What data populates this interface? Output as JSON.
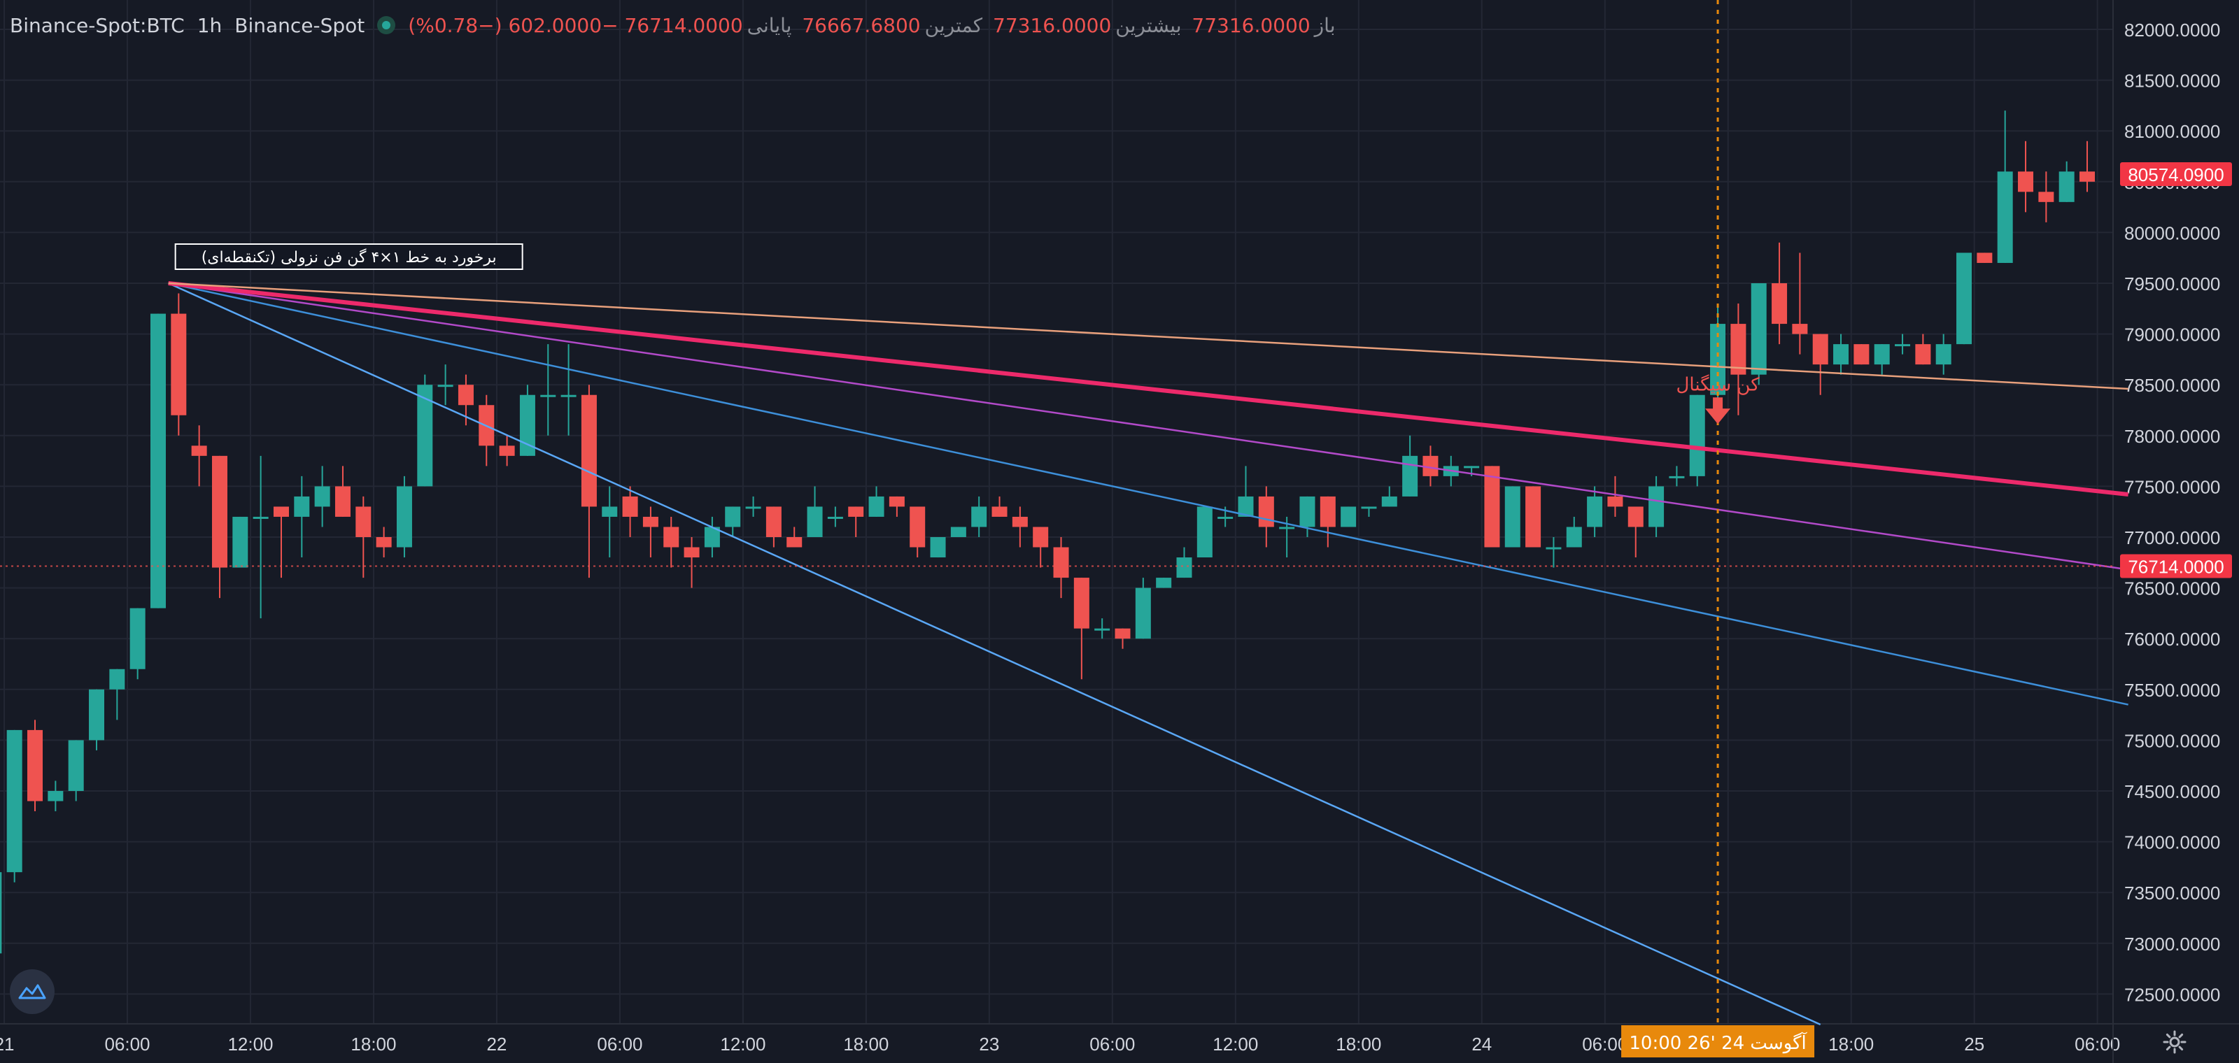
{
  "legend": {
    "symbol": "Binance-Spot:BTC",
    "interval": "1h",
    "exchange": "Binance-Spot",
    "open_label": "باز",
    "open": "77316.0000",
    "high_label": "بیشترین",
    "high": "77316.0000",
    "low_label": "کمترین",
    "low": "76667.6800",
    "close_label": "پایانی",
    "close": "76714.0000",
    "change": "−602.0000 (−0.78%)"
  },
  "colors": {
    "background": "#161a25",
    "grid": "#232734",
    "up": "#26a69a",
    "down": "#ef5350",
    "price_tag": "#f23645",
    "time_tag": "#e8890c",
    "fan_steep": "#5aa7f5",
    "fan_mid": "#3d8fd9",
    "fan_magenta": "#b24ac9",
    "fan_main": "#ed2a6b",
    "fan_flat": "#e8a07c"
  },
  "icons": {
    "logo": "tradingview-logo-icon",
    "settings": "gear-icon",
    "status": "live-status-dot-icon",
    "signal": "arrow-down-icon"
  },
  "chart_data": {
    "type": "candlestick",
    "interval": "1h",
    "ylim": [
      72250,
      82250
    ],
    "y_ticks": [
      "72500.0000",
      "73000.0000",
      "73500.0000",
      "74000.0000",
      "74500.0000",
      "75000.0000",
      "75500.0000",
      "76000.0000",
      "76500.0000",
      "77000.0000",
      "77500.0000",
      "78000.0000",
      "78500.0000",
      "79000.0000",
      "79500.0000",
      "80000.0000",
      "80500.0000",
      "81000.0000",
      "81500.0000",
      "82000.0000"
    ],
    "x_ticks": [
      "21",
      "06:00",
      "12:00",
      "18:00",
      "22",
      "06:00",
      "12:00",
      "18:00",
      "23",
      "06:00",
      "12:00",
      "18:00",
      "24",
      "06:00",
      "12:00",
      "18:00",
      "25",
      "06:00"
    ],
    "x_tick_positions_hours": [
      0,
      6,
      12,
      18,
      24,
      30,
      36,
      42,
      48,
      54,
      60,
      66,
      72,
      78,
      84,
      90,
      96,
      102
    ],
    "candle_hours_start": -0.5,
    "candles": [
      [
        72900,
        73700,
        72900,
        73700
      ],
      [
        73700,
        75100,
        73600,
        75100
      ],
      [
        75100,
        74400,
        74300,
        75200
      ],
      [
        74400,
        74500,
        74300,
        74600
      ],
      [
        74500,
        75000,
        74400,
        75000
      ],
      [
        75000,
        75500,
        74900,
        75500
      ],
      [
        75500,
        75700,
        75200,
        75700
      ],
      [
        75700,
        76300,
        75600,
        76300
      ],
      [
        76300,
        79200,
        76300,
        79200
      ],
      [
        79200,
        78200,
        78000,
        79400
      ],
      [
        77900,
        77800,
        77500,
        78100
      ],
      [
        77800,
        76700,
        76400,
        77800
      ],
      [
        76700,
        77200,
        76800,
        77200
      ],
      [
        77200,
        77200,
        76200,
        77800
      ],
      [
        77300,
        77200,
        76600,
        77300
      ],
      [
        77200,
        77400,
        76800,
        77600
      ],
      [
        77300,
        77500,
        77100,
        77700
      ],
      [
        77500,
        77200,
        77200,
        77700
      ],
      [
        77300,
        77000,
        76600,
        77400
      ],
      [
        77000,
        76900,
        76800,
        77100
      ],
      [
        76900,
        77500,
        76800,
        77600
      ],
      [
        77500,
        78500,
        77500,
        78600
      ],
      [
        78500,
        78500,
        78300,
        78700
      ],
      [
        78500,
        78300,
        78100,
        78600
      ],
      [
        78300,
        77900,
        77700,
        78400
      ],
      [
        77900,
        77800,
        77700,
        78000
      ],
      [
        77800,
        78400,
        77800,
        78500
      ],
      [
        78400,
        78400,
        78000,
        78900
      ],
      [
        78400,
        78400,
        78000,
        78900
      ],
      [
        78400,
        77300,
        76600,
        78500
      ],
      [
        77200,
        77300,
        76800,
        77500
      ],
      [
        77400,
        77200,
        77000,
        77500
      ],
      [
        77200,
        77100,
        76800,
        77300
      ],
      [
        77100,
        76900,
        76700,
        77200
      ],
      [
        76900,
        76800,
        76500,
        77000
      ],
      [
        76900,
        77100,
        76800,
        77200
      ],
      [
        77100,
        77300,
        77000,
        77300
      ],
      [
        77300,
        77300,
        77200,
        77400
      ],
      [
        77300,
        77000,
        76900,
        77300
      ],
      [
        77000,
        76900,
        76900,
        77100
      ],
      [
        77000,
        77300,
        77000,
        77500
      ],
      [
        77200,
        77200,
        77100,
        77300
      ],
      [
        77300,
        77200,
        77000,
        77300
      ],
      [
        77200,
        77400,
        77200,
        77500
      ],
      [
        77400,
        77300,
        77200,
        77400
      ],
      [
        77300,
        76900,
        76800,
        77300
      ],
      [
        76800,
        77000,
        76800,
        77000
      ],
      [
        77000,
        77100,
        77000,
        77100
      ],
      [
        77100,
        77300,
        77000,
        77400
      ],
      [
        77300,
        77200,
        77200,
        77400
      ],
      [
        77200,
        77100,
        76900,
        77300
      ],
      [
        77100,
        76900,
        76700,
        77100
      ],
      [
        76900,
        76600,
        76400,
        77000
      ],
      [
        76600,
        76100,
        75600,
        76600
      ],
      [
        76100,
        76100,
        76000,
        76200
      ],
      [
        76100,
        76000,
        75900,
        76100
      ],
      [
        76000,
        76500,
        76000,
        76600
      ],
      [
        76500,
        76600,
        76500,
        76600
      ],
      [
        76600,
        76800,
        76600,
        76900
      ],
      [
        76800,
        77300,
        76800,
        77300
      ],
      [
        77200,
        77200,
        77100,
        77300
      ],
      [
        77200,
        77400,
        77200,
        77700
      ],
      [
        77400,
        77100,
        76900,
        77500
      ],
      [
        77100,
        77100,
        76800,
        77200
      ],
      [
        77100,
        77400,
        77000,
        77400
      ],
      [
        77400,
        77100,
        76900,
        77400
      ],
      [
        77100,
        77300,
        77100,
        77300
      ],
      [
        77300,
        77300,
        77200,
        77300
      ],
      [
        77300,
        77400,
        77300,
        77500
      ],
      [
        77400,
        77800,
        77400,
        78000
      ],
      [
        77800,
        77600,
        77500,
        77900
      ],
      [
        77600,
        77700,
        77500,
        77800
      ],
      [
        77700,
        77700,
        77600,
        77700
      ],
      [
        77700,
        76900,
        76900,
        77700
      ],
      [
        76900,
        77500,
        76900,
        77500
      ],
      [
        77500,
        76900,
        76900,
        77500
      ],
      [
        76900,
        76900,
        76700,
        77000
      ],
      [
        76900,
        77100,
        76900,
        77200
      ],
      [
        77100,
        77400,
        77000,
        77500
      ],
      [
        77400,
        77300,
        77200,
        77600
      ],
      [
        77300,
        77100,
        76800,
        77300
      ],
      [
        77100,
        77500,
        77000,
        77600
      ],
      [
        77600,
        77600,
        77500,
        77700
      ],
      [
        77600,
        78400,
        77500,
        78400
      ],
      [
        78400,
        79100,
        78300,
        79300
      ],
      [
        79100,
        78600,
        78200,
        79300
      ],
      [
        78600,
        79500,
        78500,
        79500
      ],
      [
        79500,
        79100,
        78900,
        79900
      ],
      [
        79100,
        79000,
        78800,
        79800
      ],
      [
        79000,
        78700,
        78400,
        79000
      ],
      [
        78700,
        78900,
        78600,
        79000
      ],
      [
        78900,
        78700,
        78700,
        78900
      ],
      [
        78700,
        78900,
        78600,
        78900
      ],
      [
        78900,
        78900,
        78800,
        79000
      ],
      [
        78900,
        78700,
        78700,
        79000
      ],
      [
        78700,
        78900,
        78600,
        79000
      ],
      [
        78900,
        79800,
        78900,
        79800
      ],
      [
        79800,
        79700,
        79700,
        79800
      ],
      [
        79700,
        80600,
        79700,
        81200
      ],
      [
        80600,
        80400,
        80200,
        80900
      ],
      [
        80400,
        80300,
        80100,
        80600
      ],
      [
        80300,
        80600,
        80300,
        80700
      ],
      [
        80600,
        80500,
        80400,
        80900
      ]
    ],
    "last_price": "80574.0900",
    "last_price_value": 80574.09,
    "selected_close": "76714.0000",
    "selected_close_value": 76714,
    "cursor_hours": 83.5,
    "cursor_time": "10:00  26' آگوست 24",
    "fan_anchor": {
      "hours": 8,
      "price": 79500
    },
    "fan_lines": [
      {
        "role": "steep",
        "end_hours": 88.5,
        "end_price": 72200
      },
      {
        "role": "mid",
        "end_hours": 103.5,
        "end_price": 75350
      },
      {
        "role": "magenta",
        "end_hours": 103.5,
        "end_price": 76680
      },
      {
        "role": "main",
        "end_hours": 103.5,
        "end_price": 77420
      },
      {
        "role": "flat",
        "end_hours": 103.5,
        "end_price": 78460
      }
    ],
    "annotation": "برخورد به خط ۱×۴ گن فن نزولی (تکنقطه‌ای)",
    "signal_label": "کن سیگنال",
    "signal_hours": 83.5,
    "signal_price": 78100
  }
}
